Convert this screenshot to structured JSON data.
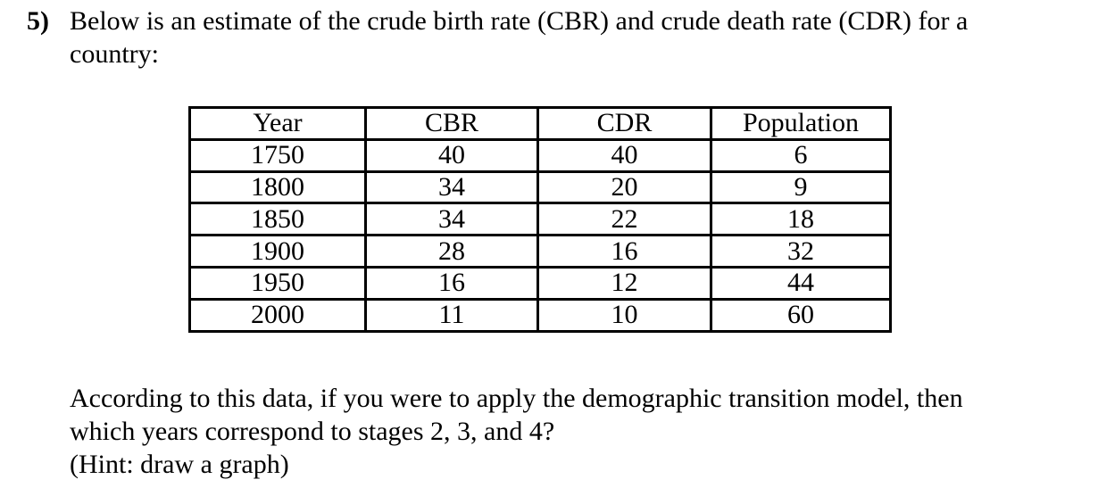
{
  "page": {
    "background": "#ffffff",
    "text_color": "#000000"
  },
  "question": {
    "number": "5)",
    "intro_lines": [
      "Below is an estimate of the crude birth rate (CBR) and crude death rate (CDR) for a",
      "country:"
    ]
  },
  "table": {
    "headers": [
      "Year",
      "CBR",
      "CDR",
      "Population"
    ],
    "rows": [
      [
        "1750",
        "40",
        "40",
        "6"
      ],
      [
        "1800",
        "34",
        "20",
        "9"
      ],
      [
        "1850",
        "34",
        "22",
        "18"
      ],
      [
        "1900",
        "28",
        "16",
        "32"
      ],
      [
        "1950",
        "16",
        "12",
        "44"
      ],
      [
        "2000",
        "11",
        "10",
        "60"
      ]
    ]
  },
  "prompt": {
    "lines": [
      "According to this data, if you were to apply the demographic transition model, then",
      "which years correspond to stages 2, 3, and 4?",
      "(Hint: draw a graph)"
    ]
  }
}
